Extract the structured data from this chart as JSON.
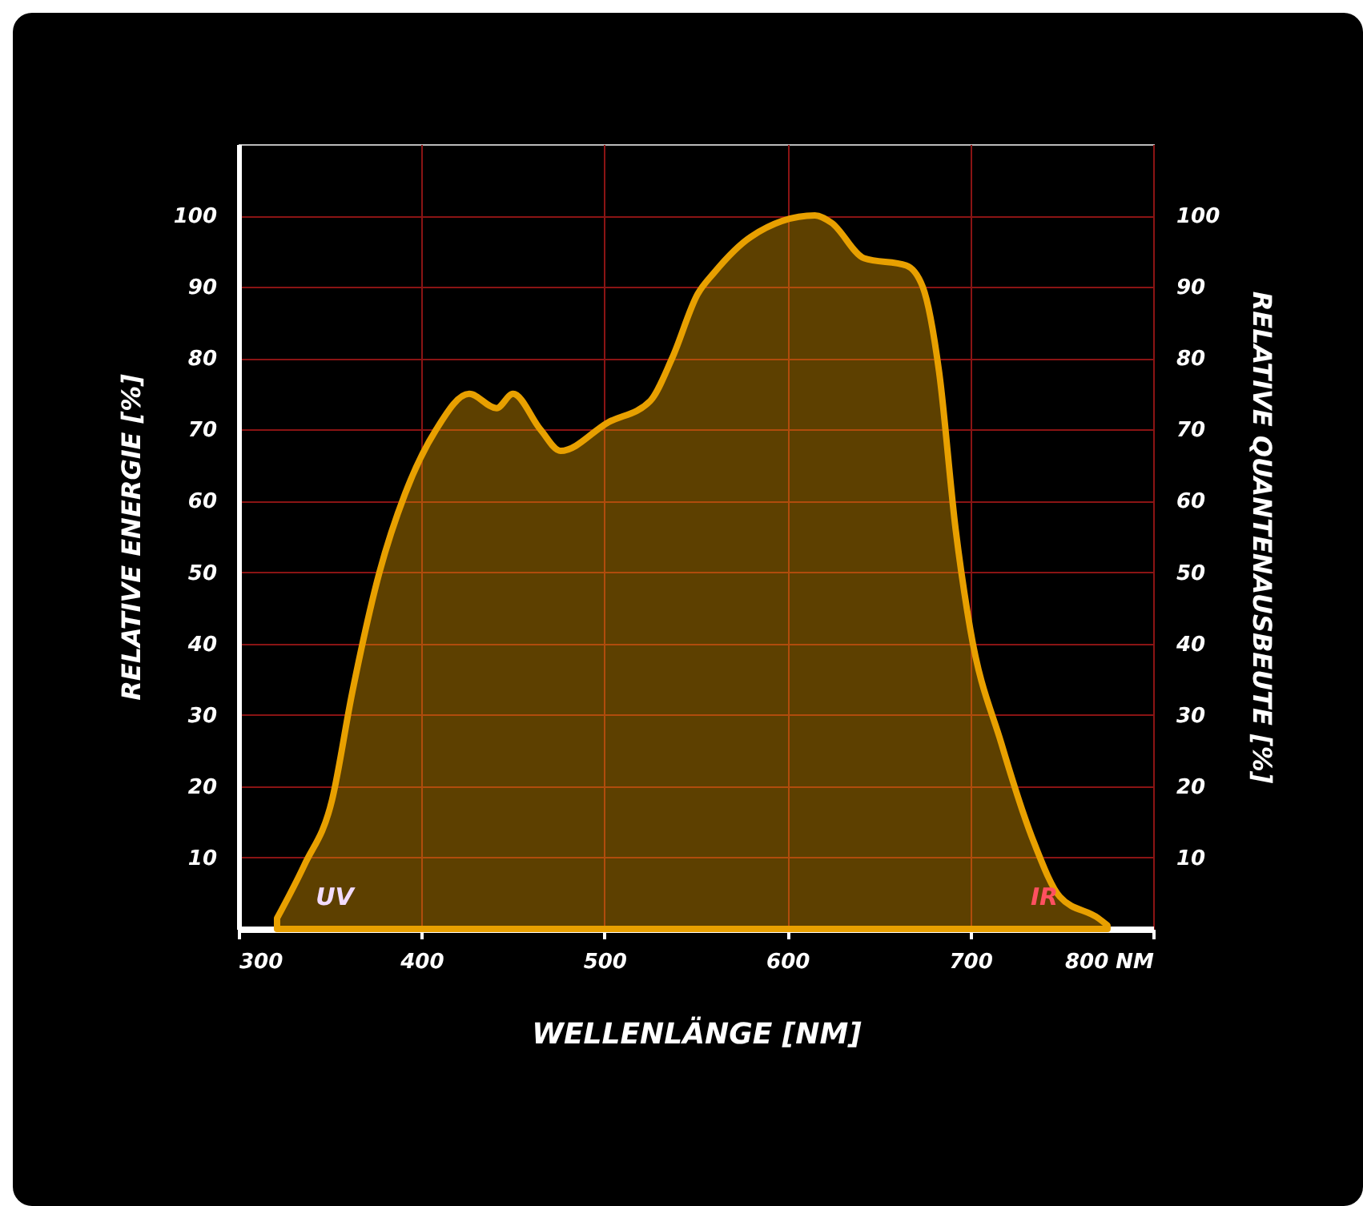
{
  "chart_data": {
    "type": "area",
    "xlabel": "WELLENLÄNGE [NM]",
    "ylabel": "RELATIVE ENERGIE [%]",
    "y2label": "RELATIVE QUANTENAUSBEUTE [%]",
    "x": [
      321,
      336,
      351,
      362,
      377,
      391,
      408,
      426,
      441,
      450,
      465,
      476,
      502,
      525,
      537,
      551,
      560,
      580,
      615,
      624,
      642,
      665,
      674,
      683,
      692,
      700,
      717,
      735,
      749,
      770,
      775
    ],
    "series": [
      {
        "color": "#e8a000",
        "values": [
          1.5,
          9,
          18,
          33,
          50,
          61,
          70,
          75,
          73,
          75,
          70,
          67,
          71,
          74,
          80,
          89,
          92,
          97,
          100,
          99,
          94,
          93,
          90,
          78,
          56,
          42,
          26,
          12,
          4.5,
          1.5,
          0.5
        ]
      }
    ],
    "xlim": [
      300,
      800
    ],
    "xticks": [
      300,
      400,
      500,
      600,
      700,
      {
        "value": 800,
        "label": "800 NM"
      }
    ],
    "ylim": [
      0,
      110
    ],
    "yticks": [
      10,
      20,
      30,
      40,
      50,
      60,
      70,
      80,
      90,
      100
    ],
    "y2lim": [
      0,
      110
    ],
    "y2ticks": [
      10,
      20,
      30,
      40,
      50,
      60,
      70,
      80,
      90,
      100
    ],
    "grid": true,
    "annotations": [
      "UV",
      "IR"
    ]
  }
}
